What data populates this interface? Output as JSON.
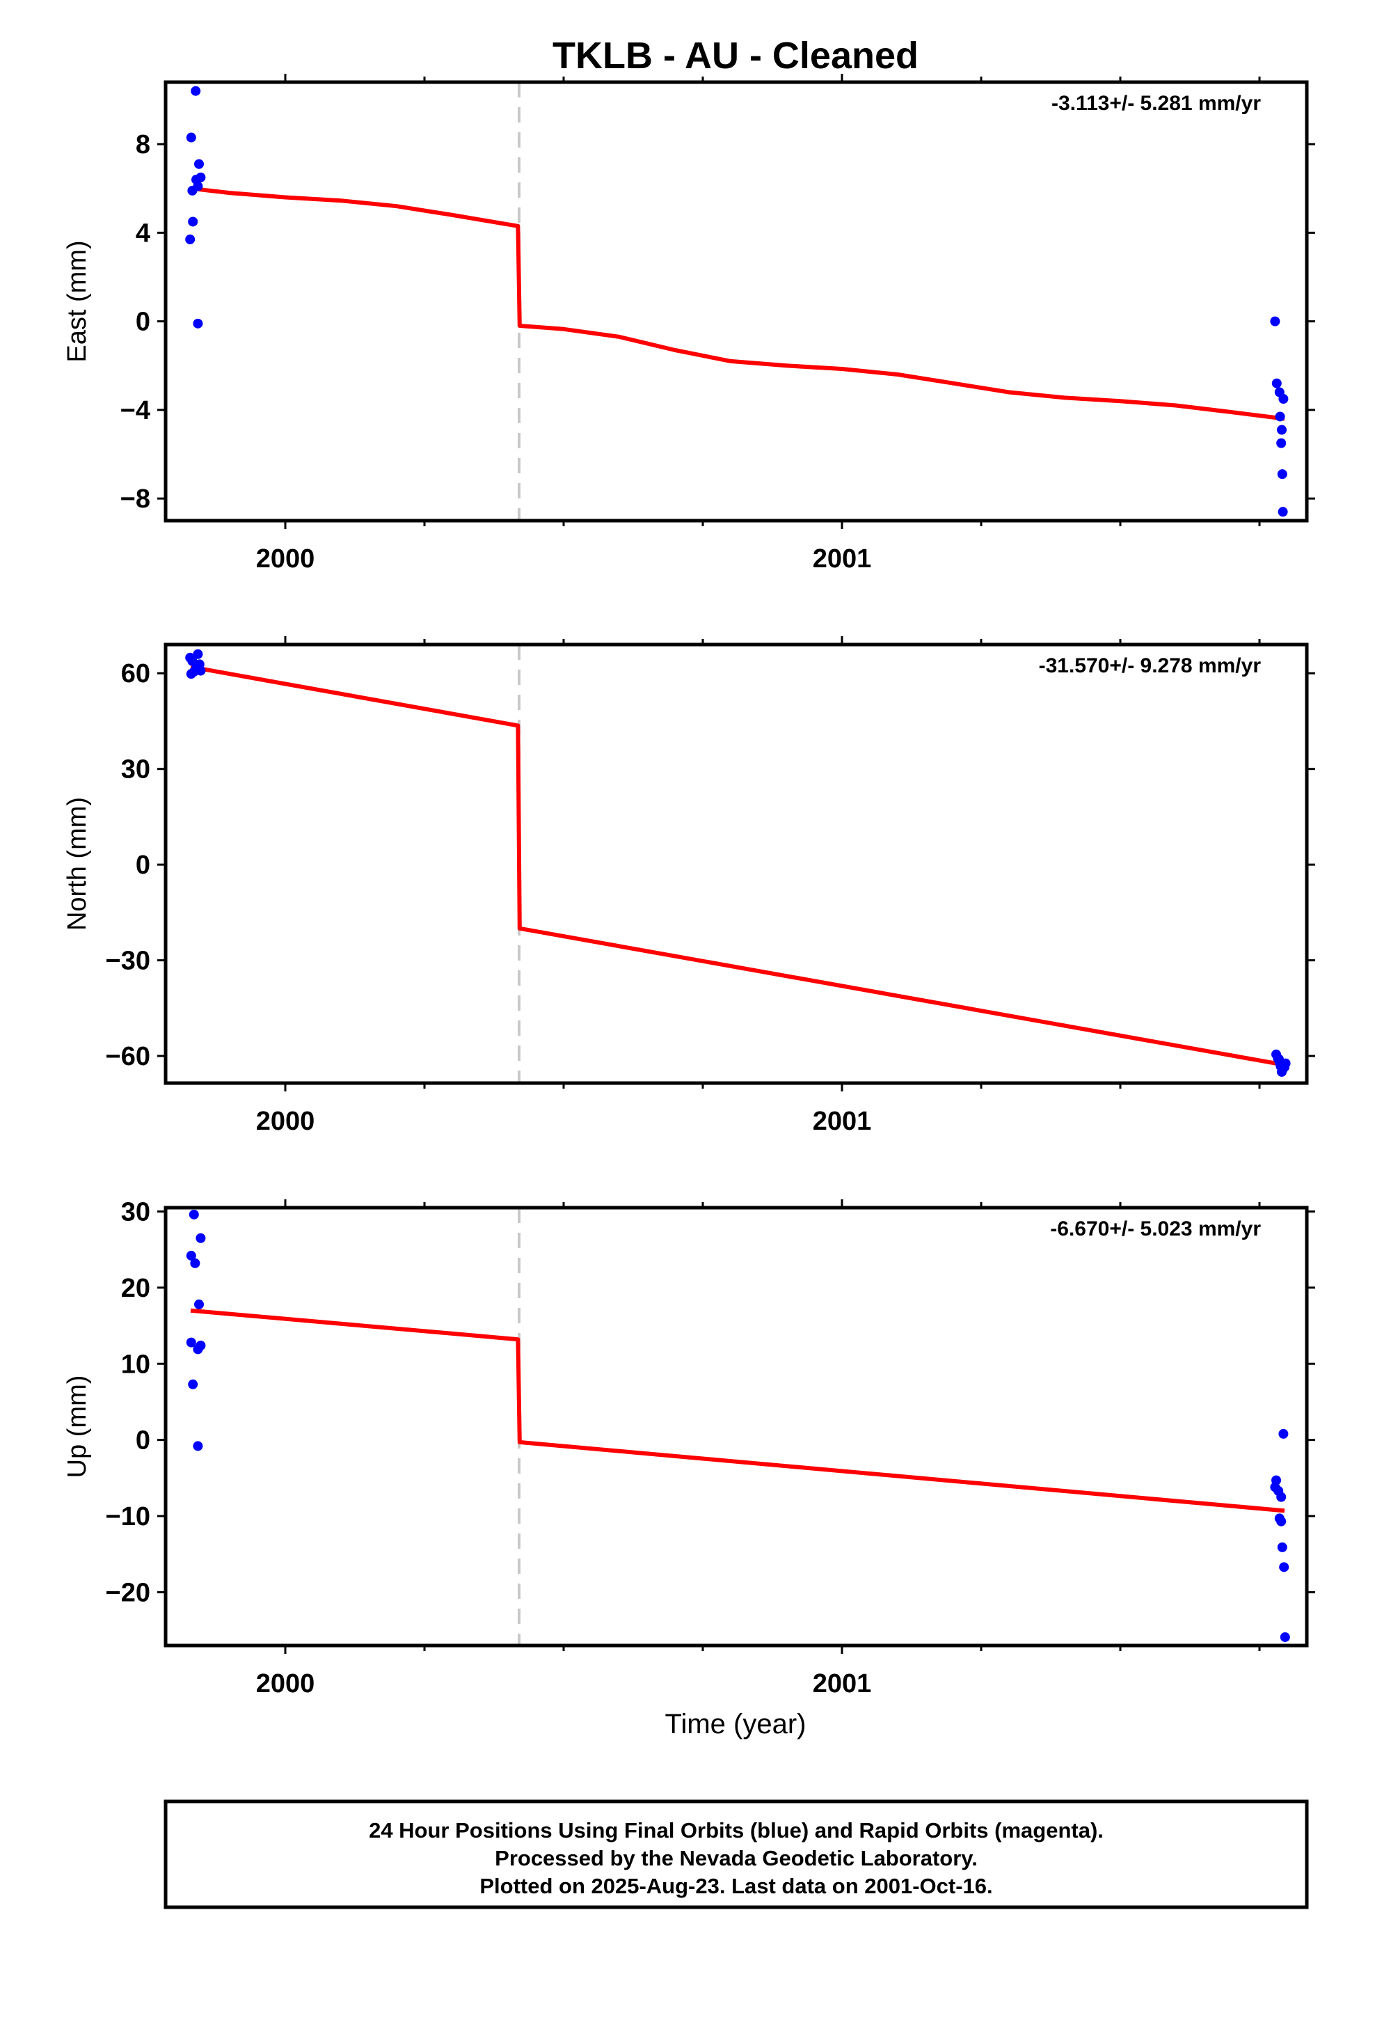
{
  "title": "TKLB  - AU - Cleaned",
  "xlabel": "Time (year)",
  "footer": {
    "line1": "24 Hour Positions Using Final Orbits (blue) and Rapid Orbits (magenta).",
    "line2": "Processed by the Nevada Geodetic Laboratory.",
    "line3": "Plotted on 2025-Aug-23. Last data on 2001-Oct-16."
  },
  "colors": {
    "final_orbits": "#0000ff",
    "model": "#ff0000",
    "offset_line": "#c8c8c8"
  },
  "chart_data": [
    {
      "type": "scatter",
      "panel": "east",
      "ylabel": "East (mm)",
      "rate_text": "-3.113+/- 5.281 mm/yr",
      "xlim": [
        1999.785,
        2001.835
      ],
      "ylim": [
        -9.0,
        10.8
      ],
      "yticks": [
        -8,
        -4,
        0,
        4,
        8
      ],
      "xticks": [
        2000,
        2001
      ],
      "xminor": [
        2000.25,
        2000.5,
        2000.75,
        2001.25,
        2001.5,
        2001.75
      ],
      "offset_epoch": 2000.42,
      "points": [
        {
          "x": 1999.839,
          "y": 10.4
        },
        {
          "x": 1999.831,
          "y": 8.3
        },
        {
          "x": 1999.845,
          "y": 7.1
        },
        {
          "x": 1999.84,
          "y": 6.4
        },
        {
          "x": 1999.848,
          "y": 6.5
        },
        {
          "x": 1999.833,
          "y": 5.9
        },
        {
          "x": 1999.843,
          "y": 6.1
        },
        {
          "x": 1999.834,
          "y": 4.5
        },
        {
          "x": 1999.829,
          "y": 3.7
        },
        {
          "x": 1999.843,
          "y": -0.1
        },
        {
          "x": 2001.778,
          "y": 0.0
        },
        {
          "x": 2001.781,
          "y": -2.8
        },
        {
          "x": 2001.786,
          "y": -3.2
        },
        {
          "x": 2001.793,
          "y": -3.5
        },
        {
          "x": 2001.787,
          "y": -4.3
        },
        {
          "x": 2001.79,
          "y": -4.9
        },
        {
          "x": 2001.789,
          "y": -5.5
        },
        {
          "x": 2001.791,
          "y": -6.9
        },
        {
          "x": 2001.792,
          "y": -8.6
        }
      ],
      "model": [
        [
          1999.83,
          6.0
        ],
        [
          1999.9,
          5.8
        ],
        [
          2000.0,
          5.6
        ],
        [
          2000.1,
          5.45
        ],
        [
          2000.2,
          5.2
        ],
        [
          2000.3,
          4.8
        ],
        [
          2000.418,
          4.3
        ],
        [
          2000.421,
          -0.2
        ],
        [
          2000.5,
          -0.35
        ],
        [
          2000.6,
          -0.7
        ],
        [
          2000.7,
          -1.3
        ],
        [
          2000.8,
          -1.8
        ],
        [
          2000.9,
          -2.0
        ],
        [
          2001.0,
          -2.15
        ],
        [
          2001.1,
          -2.4
        ],
        [
          2001.2,
          -2.8
        ],
        [
          2001.3,
          -3.2
        ],
        [
          2001.4,
          -3.45
        ],
        [
          2001.5,
          -3.6
        ],
        [
          2001.6,
          -3.8
        ],
        [
          2001.7,
          -4.1
        ],
        [
          2001.795,
          -4.4
        ]
      ]
    },
    {
      "type": "scatter",
      "panel": "north",
      "ylabel": "North (mm)",
      "rate_text": "-31.570+/- 9.278 mm/yr",
      "xlim": [
        1999.785,
        2001.835
      ],
      "ylim": [
        -68.5,
        69.0
      ],
      "yticks": [
        -60,
        -30,
        0,
        30,
        60
      ],
      "xticks": [
        2000,
        2001
      ],
      "xminor": [
        2000.25,
        2000.5,
        2000.75,
        2001.25,
        2001.5,
        2001.75
      ],
      "offset_epoch": 2000.42,
      "points": [
        {
          "x": 1999.829,
          "y": 64.9
        },
        {
          "x": 1999.833,
          "y": 63.8
        },
        {
          "x": 1999.843,
          "y": 66.0
        },
        {
          "x": 1999.846,
          "y": 62.8
        },
        {
          "x": 1999.84,
          "y": 61.5
        },
        {
          "x": 1999.836,
          "y": 60.5
        },
        {
          "x": 1999.831,
          "y": 59.8
        },
        {
          "x": 1999.848,
          "y": 60.8
        },
        {
          "x": 1999.842,
          "y": 62.0
        },
        {
          "x": 2001.78,
          "y": -59.5
        },
        {
          "x": 2001.783,
          "y": -60.8
        },
        {
          "x": 2001.786,
          "y": -62.0
        },
        {
          "x": 2001.788,
          "y": -63.2
        },
        {
          "x": 2001.791,
          "y": -64.5
        },
        {
          "x": 2001.795,
          "y": -63.5
        },
        {
          "x": 2001.797,
          "y": -62.3
        },
        {
          "x": 2001.785,
          "y": -61.0
        },
        {
          "x": 2001.79,
          "y": -65.0
        }
      ],
      "model": [
        [
          1999.83,
          62.0
        ],
        [
          2000.418,
          43.6
        ],
        [
          2000.421,
          -20.0
        ],
        [
          2001.795,
          -62.8
        ]
      ]
    },
    {
      "type": "scatter",
      "panel": "up",
      "ylabel": "Up (mm)",
      "rate_text": "-6.670+/- 5.023 mm/yr",
      "xlim": [
        1999.785,
        2001.835
      ],
      "ylim": [
        -27.0,
        30.5
      ],
      "yticks": [
        -20,
        -10,
        0,
        10,
        20,
        30
      ],
      "xticks": [
        2000,
        2001
      ],
      "xminor": [
        2000.25,
        2000.5,
        2000.75,
        2001.25,
        2001.5,
        2001.75
      ],
      "offset_epoch": 2000.42,
      "points": [
        {
          "x": 1999.836,
          "y": 29.6
        },
        {
          "x": 1999.848,
          "y": 26.5
        },
        {
          "x": 1999.831,
          "y": 24.2
        },
        {
          "x": 1999.838,
          "y": 23.2
        },
        {
          "x": 1999.845,
          "y": 17.8
        },
        {
          "x": 1999.831,
          "y": 12.8
        },
        {
          "x": 1999.848,
          "y": 12.4
        },
        {
          "x": 1999.843,
          "y": 11.9
        },
        {
          "x": 1999.834,
          "y": 7.3
        },
        {
          "x": 1999.843,
          "y": -0.8
        },
        {
          "x": 2001.793,
          "y": 0.8
        },
        {
          "x": 2001.78,
          "y": -5.3
        },
        {
          "x": 2001.778,
          "y": -6.2
        },
        {
          "x": 2001.784,
          "y": -6.7
        },
        {
          "x": 2001.789,
          "y": -7.5
        },
        {
          "x": 2001.786,
          "y": -10.3
        },
        {
          "x": 2001.789,
          "y": -10.7
        },
        {
          "x": 2001.791,
          "y": -14.1
        },
        {
          "x": 2001.794,
          "y": -16.7
        },
        {
          "x": 2001.796,
          "y": -25.9
        }
      ],
      "model": [
        [
          1999.83,
          17.0
        ],
        [
          2000.418,
          13.2
        ],
        [
          2000.421,
          -0.3
        ],
        [
          2001.795,
          -9.3
        ]
      ]
    }
  ]
}
